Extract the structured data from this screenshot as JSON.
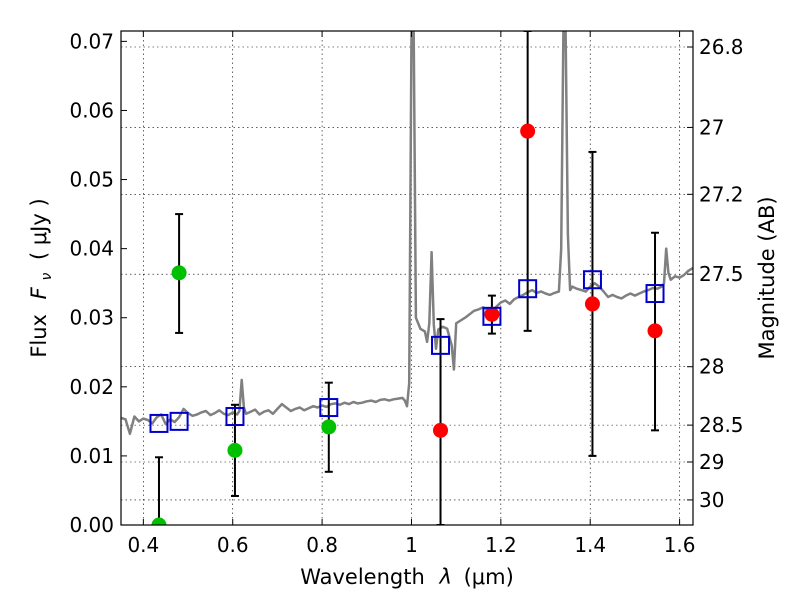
{
  "chart_data": {
    "type": "scatter",
    "xlabel_text": "Wavelength",
    "xlabel_symbol": "λ",
    "xlabel_unit": "(μm)",
    "ylabel_text": "Flux",
    "ylabel_symbol": "F",
    "ylabel_sub": "ν",
    "ylabel_unit": "( μJy )",
    "y2label": "Magnitude (AB)",
    "xlim": [
      0.35,
      1.63
    ],
    "ylim": [
      0.0,
      0.0715
    ],
    "xticks": [
      0.4,
      0.6,
      0.8,
      1.0,
      1.2,
      1.4,
      1.6
    ],
    "xtick_labels": [
      "0.4",
      "0.6",
      "0.8",
      "1",
      "1.2",
      "1.4",
      "1.6"
    ],
    "yticks": [
      0.0,
      0.01,
      0.02,
      0.03,
      0.04,
      0.05,
      0.06,
      0.07
    ],
    "ytick_labels": [
      "0.00",
      "0.01",
      "0.02",
      "0.03",
      "0.04",
      "0.05",
      "0.06",
      "0.07"
    ],
    "y2ticks": [
      26.8,
      27.0,
      27.2,
      27.5,
      28.0,
      28.5,
      29.0,
      30.0
    ],
    "y2tick_labels": [
      "26.8",
      "27",
      "27.2",
      "27.5",
      "28",
      "28.5",
      "29",
      "30"
    ],
    "grid": true,
    "colors": {
      "model": "#808080",
      "green": "#00c000",
      "red": "#ff0000",
      "square": "#0000cc",
      "errorbar": "#000000"
    },
    "series": [
      {
        "name": "model spectrum",
        "style": "line",
        "points": [
          [
            0.35,
            0.0155
          ],
          [
            0.36,
            0.0153
          ],
          [
            0.37,
            0.0132
          ],
          [
            0.38,
            0.0157
          ],
          [
            0.39,
            0.015
          ],
          [
            0.4,
            0.0154
          ],
          [
            0.41,
            0.0152
          ],
          [
            0.42,
            0.0147
          ],
          [
            0.43,
            0.0156
          ],
          [
            0.44,
            0.016
          ],
          [
            0.45,
            0.0146
          ],
          [
            0.46,
            0.0153
          ],
          [
            0.47,
            0.0149
          ],
          [
            0.48,
            0.0156
          ],
          [
            0.49,
            0.0168
          ],
          [
            0.5,
            0.0162
          ],
          [
            0.51,
            0.0158
          ],
          [
            0.52,
            0.016
          ],
          [
            0.53,
            0.0163
          ],
          [
            0.54,
            0.0165
          ],
          [
            0.55,
            0.0159
          ],
          [
            0.56,
            0.0162
          ],
          [
            0.57,
            0.0166
          ],
          [
            0.58,
            0.0161
          ],
          [
            0.59,
            0.0159
          ],
          [
            0.6,
            0.0163
          ],
          [
            0.61,
            0.016
          ],
          [
            0.615,
            0.0165
          ],
          [
            0.62,
            0.021
          ],
          [
            0.625,
            0.017
          ],
          [
            0.63,
            0.0161
          ],
          [
            0.64,
            0.0164
          ],
          [
            0.65,
            0.0167
          ],
          [
            0.66,
            0.016
          ],
          [
            0.67,
            0.0164
          ],
          [
            0.68,
            0.0166
          ],
          [
            0.69,
            0.0161
          ],
          [
            0.7,
            0.0168
          ],
          [
            0.71,
            0.0175
          ],
          [
            0.72,
            0.017
          ],
          [
            0.73,
            0.0165
          ],
          [
            0.74,
            0.0168
          ],
          [
            0.75,
            0.017
          ],
          [
            0.76,
            0.0166
          ],
          [
            0.77,
            0.0169
          ],
          [
            0.78,
            0.0172
          ],
          [
            0.79,
            0.017
          ],
          [
            0.8,
            0.0173
          ],
          [
            0.81,
            0.0171
          ],
          [
            0.82,
            0.0175
          ],
          [
            0.83,
            0.0176
          ],
          [
            0.84,
            0.0174
          ],
          [
            0.85,
            0.0177
          ],
          [
            0.86,
            0.0175
          ],
          [
            0.87,
            0.0178
          ],
          [
            0.88,
            0.0176
          ],
          [
            0.89,
            0.0177
          ],
          [
            0.9,
            0.0179
          ],
          [
            0.91,
            0.018
          ],
          [
            0.92,
            0.0178
          ],
          [
            0.93,
            0.0181
          ],
          [
            0.94,
            0.0182
          ],
          [
            0.95,
            0.018
          ],
          [
            0.96,
            0.0182
          ],
          [
            0.97,
            0.0183
          ],
          [
            0.98,
            0.0184
          ],
          [
            0.985,
            0.018
          ],
          [
            0.99,
            0.0172
          ],
          [
            0.995,
            0.0205
          ],
          [
            1.0,
            0.0715
          ],
          [
            1.005,
            0.0715
          ],
          [
            1.01,
            0.03
          ],
          [
            1.02,
            0.0284
          ],
          [
            1.03,
            0.028
          ],
          [
            1.035,
            0.0265
          ],
          [
            1.04,
            0.0292
          ],
          [
            1.045,
            0.0395
          ],
          [
            1.05,
            0.029
          ],
          [
            1.055,
            0.0255
          ],
          [
            1.06,
            0.0283
          ],
          [
            1.07,
            0.0287
          ],
          [
            1.08,
            0.0284
          ],
          [
            1.09,
            0.026
          ],
          [
            1.095,
            0.0225
          ],
          [
            1.1,
            0.0292
          ],
          [
            1.11,
            0.0296
          ],
          [
            1.12,
            0.03
          ],
          [
            1.13,
            0.0305
          ],
          [
            1.14,
            0.031
          ],
          [
            1.15,
            0.0312
          ],
          [
            1.16,
            0.0315
          ],
          [
            1.17,
            0.0312
          ],
          [
            1.18,
            0.031
          ],
          [
            1.19,
            0.0316
          ],
          [
            1.2,
            0.0322
          ],
          [
            1.21,
            0.0325
          ],
          [
            1.22,
            0.032
          ],
          [
            1.23,
            0.0327
          ],
          [
            1.24,
            0.033
          ],
          [
            1.25,
            0.0333
          ],
          [
            1.26,
            0.0337
          ],
          [
            1.27,
            0.034
          ],
          [
            1.28,
            0.0336
          ],
          [
            1.29,
            0.0338
          ],
          [
            1.3,
            0.0335
          ],
          [
            1.31,
            0.0333
          ],
          [
            1.32,
            0.0336
          ],
          [
            1.33,
            0.0338
          ],
          [
            1.335,
            0.04
          ],
          [
            1.34,
            0.0715
          ],
          [
            1.345,
            0.0715
          ],
          [
            1.35,
            0.042
          ],
          [
            1.355,
            0.034
          ],
          [
            1.36,
            0.0345
          ],
          [
            1.37,
            0.0342
          ],
          [
            1.38,
            0.034
          ],
          [
            1.39,
            0.0338
          ],
          [
            1.4,
            0.0345
          ],
          [
            1.41,
            0.035
          ],
          [
            1.42,
            0.0345
          ],
          [
            1.43,
            0.0338
          ],
          [
            1.44,
            0.033
          ],
          [
            1.45,
            0.0333
          ],
          [
            1.46,
            0.033
          ],
          [
            1.47,
            0.0328
          ],
          [
            1.48,
            0.0332
          ],
          [
            1.49,
            0.0335
          ],
          [
            1.5,
            0.0332
          ],
          [
            1.51,
            0.0335
          ],
          [
            1.52,
            0.0338
          ],
          [
            1.53,
            0.034
          ],
          [
            1.54,
            0.0343
          ],
          [
            1.55,
            0.0342
          ],
          [
            1.56,
            0.0345
          ],
          [
            1.565,
            0.035
          ],
          [
            1.57,
            0.04
          ],
          [
            1.575,
            0.0365
          ],
          [
            1.58,
            0.0355
          ],
          [
            1.59,
            0.036
          ],
          [
            1.6,
            0.0358
          ],
          [
            1.61,
            0.0362
          ],
          [
            1.62,
            0.0368
          ],
          [
            1.63,
            0.0372
          ]
        ]
      },
      {
        "name": "green points",
        "style": "circle",
        "points": [
          [
            0.435,
            0.0
          ],
          [
            0.48,
            0.0365
          ],
          [
            0.605,
            0.0108
          ],
          [
            0.815,
            0.0142
          ]
        ]
      },
      {
        "name": "red points",
        "style": "circle",
        "points": [
          [
            1.065,
            0.0137
          ],
          [
            1.18,
            0.0305
          ],
          [
            1.26,
            0.057
          ],
          [
            1.405,
            0.032
          ],
          [
            1.545,
            0.0281
          ]
        ]
      },
      {
        "name": "model photometry",
        "style": "open-square",
        "points": [
          [
            0.435,
            0.0147
          ],
          [
            0.48,
            0.015
          ],
          [
            0.605,
            0.0157
          ],
          [
            0.815,
            0.017
          ],
          [
            1.065,
            0.026
          ],
          [
            1.18,
            0.0302
          ],
          [
            1.26,
            0.0342
          ],
          [
            1.405,
            0.0355
          ],
          [
            1.545,
            0.0335
          ]
        ]
      }
    ],
    "errorbars": [
      {
        "x": 0.435,
        "low": 0.0,
        "high": 0.0098
      },
      {
        "x": 0.48,
        "low": 0.0278,
        "high": 0.045
      },
      {
        "x": 0.605,
        "low": 0.0042,
        "high": 0.0174
      },
      {
        "x": 0.815,
        "low": 0.0077,
        "high": 0.0206
      },
      {
        "x": 1.065,
        "low": 0.0,
        "high": 0.0298
      },
      {
        "x": 1.18,
        "low": 0.0277,
        "high": 0.0332
      },
      {
        "x": 1.26,
        "low": 0.0281,
        "high": 0.0715
      },
      {
        "x": 1.405,
        "low": 0.01,
        "high": 0.054
      },
      {
        "x": 1.545,
        "low": 0.0137,
        "high": 0.0423
      }
    ]
  }
}
